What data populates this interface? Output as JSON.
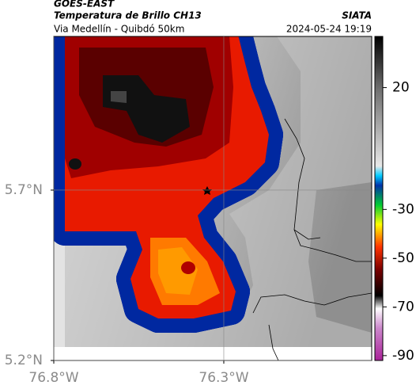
{
  "header": {
    "source": "GOES-EAST",
    "title": "Temperatura de Brillo CH13",
    "subtitle": "Via Medellín - Quibdó 50km",
    "org": "SIATA",
    "datetime": "2024-05-24 19:19"
  },
  "map": {
    "xlim": [
      -76.8,
      -75.865
    ],
    "ylim": [
      5.2,
      6.151
    ],
    "xticks": [
      {
        "value": -76.8,
        "label": "76.8°W"
      },
      {
        "value": -76.3,
        "label": "76.3°W"
      }
    ],
    "yticks": [
      {
        "value": 5.7,
        "label": "5.7°N"
      },
      {
        "value": 5.2,
        "label": "5.2°N"
      }
    ],
    "grid": true
  },
  "colorbar": {
    "lim": [
      -92,
      41
    ],
    "ticks": [
      20,
      -30,
      -50,
      -70,
      -90
    ]
  }
}
